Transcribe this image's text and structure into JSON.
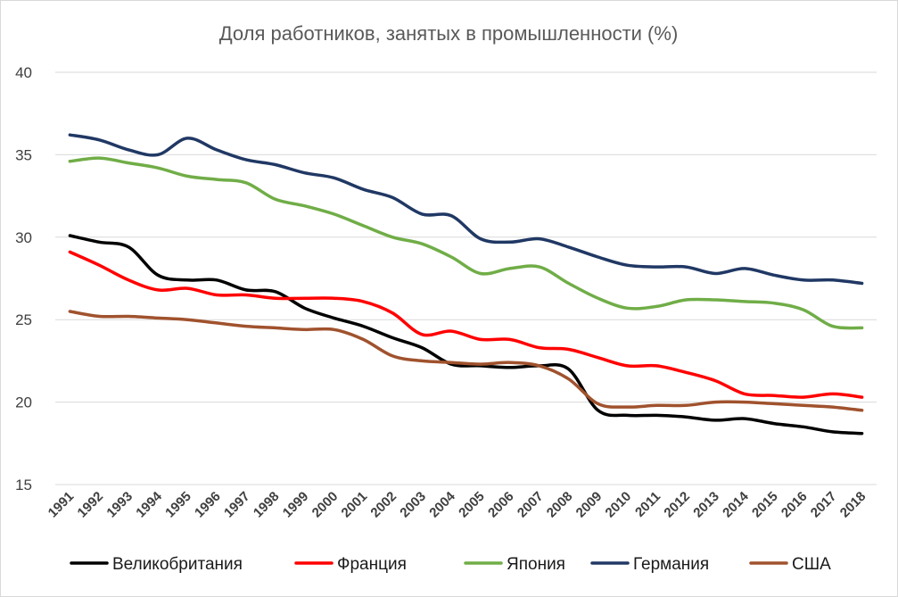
{
  "chart_data": {
    "type": "line",
    "title": "Доля работников, занятых в промышленности  (%)",
    "xlabel": "",
    "ylabel": "",
    "ylim": [
      15,
      40
    ],
    "yticks": [
      15,
      20,
      25,
      30,
      35,
      40
    ],
    "grid": true,
    "legend_position": "bottom",
    "categories": [
      "1991",
      "1992",
      "1993",
      "1994",
      "1995",
      "1996",
      "1997",
      "1998",
      "1999",
      "2000",
      "2001",
      "2002",
      "2003",
      "2004",
      "2005",
      "2006",
      "2007",
      "2008",
      "2009",
      "2010",
      "2011",
      "2012",
      "2013",
      "2014",
      "2015",
      "2016",
      "2017",
      "2018"
    ],
    "series": [
      {
        "name": "Великобритания",
        "color": "#000000",
        "values": [
          30.1,
          29.7,
          29.4,
          27.7,
          27.4,
          27.4,
          26.8,
          26.7,
          25.7,
          25.1,
          24.6,
          23.9,
          23.3,
          22.3,
          22.2,
          22.1,
          22.2,
          22.0,
          19.5,
          19.2,
          19.2,
          19.1,
          18.9,
          19.0,
          18.7,
          18.5,
          18.2,
          18.1
        ]
      },
      {
        "name": "Франция",
        "color": "#ff0000",
        "values": [
          29.1,
          28.3,
          27.4,
          26.8,
          26.9,
          26.5,
          26.5,
          26.3,
          26.3,
          26.3,
          26.1,
          25.4,
          24.1,
          24.3,
          23.8,
          23.8,
          23.3,
          23.2,
          22.7,
          22.2,
          22.2,
          21.8,
          21.3,
          20.5,
          20.4,
          20.3,
          20.5,
          20.3
        ]
      },
      {
        "name": "Япония",
        "color": "#70ad47",
        "values": [
          34.6,
          34.8,
          34.5,
          34.2,
          33.7,
          33.5,
          33.3,
          32.3,
          31.9,
          31.4,
          30.7,
          30.0,
          29.6,
          28.8,
          27.8,
          28.1,
          28.2,
          27.2,
          26.3,
          25.7,
          25.8,
          26.2,
          26.2,
          26.1,
          26.0,
          25.6,
          24.6,
          24.5
        ]
      },
      {
        "name": "Германия",
        "color": "#203864",
        "values": [
          36.2,
          35.9,
          35.3,
          35.0,
          36.0,
          35.3,
          34.7,
          34.4,
          33.9,
          33.6,
          32.9,
          32.4,
          31.4,
          31.3,
          29.9,
          29.7,
          29.9,
          29.4,
          28.8,
          28.3,
          28.2,
          28.2,
          27.8,
          28.1,
          27.7,
          27.4,
          27.4,
          27.2
        ]
      },
      {
        "name": "США",
        "color": "#a0522d",
        "values": [
          25.5,
          25.2,
          25.2,
          25.1,
          25.0,
          24.8,
          24.6,
          24.5,
          24.4,
          24.4,
          23.8,
          22.8,
          22.5,
          22.4,
          22.3,
          22.4,
          22.2,
          21.4,
          19.9,
          19.7,
          19.8,
          19.8,
          20.0,
          20.0,
          19.9,
          19.8,
          19.7,
          19.5
        ]
      }
    ]
  }
}
